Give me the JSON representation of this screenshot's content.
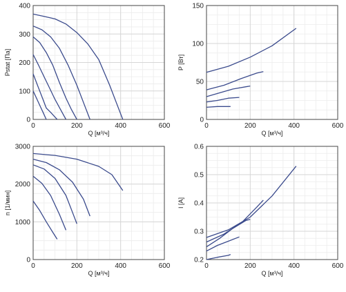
{
  "colors": {
    "curve": "#3a4a8c",
    "grid": "#d6d6d6",
    "axis": "#444444"
  },
  "chart_data": [
    {
      "type": "line",
      "xlabel": "Q [м³/ч]",
      "ylabel": "Pstat [Па]",
      "xlim": [
        0,
        600
      ],
      "ylim": [
        0,
        400
      ],
      "xticks": [
        0,
        200,
        400,
        600
      ],
      "yticks": [
        0,
        100,
        200,
        300,
        400
      ],
      "grid": true,
      "series": [
        {
          "x": [
            0,
            50,
            100,
            150,
            200,
            250,
            300,
            350,
            380,
            410
          ],
          "y": [
            370,
            362,
            353,
            335,
            305,
            265,
            210,
            120,
            60,
            0
          ]
        },
        {
          "x": [
            0,
            40,
            80,
            120,
            160,
            200,
            230,
            260
          ],
          "y": [
            328,
            315,
            290,
            250,
            190,
            120,
            60,
            0
          ]
        },
        {
          "x": [
            0,
            30,
            60,
            90,
            120,
            150,
            175,
            200
          ],
          "y": [
            290,
            270,
            235,
            190,
            130,
            75,
            35,
            0
          ]
        },
        {
          "x": [
            0,
            25,
            50,
            75,
            100,
            125,
            150
          ],
          "y": [
            228,
            190,
            150,
            110,
            70,
            35,
            0
          ]
        },
        {
          "x": [
            0,
            20,
            40,
            60,
            80,
            100,
            110
          ],
          "y": [
            160,
            120,
            80,
            40,
            25,
            8,
            0
          ]
        },
        {
          "x": [
            0,
            15,
            30,
            45,
            60
          ],
          "y": [
            100,
            75,
            50,
            25,
            0
          ]
        }
      ]
    },
    {
      "type": "line",
      "xlabel": "Q [м³/ч]",
      "ylabel": "P [Вт]",
      "xlim": [
        0,
        600
      ],
      "ylim": [
        0,
        150
      ],
      "xticks": [
        0,
        200,
        400,
        600
      ],
      "yticks": [
        0,
        50,
        100,
        150
      ],
      "grid": true,
      "series": [
        {
          "x": [
            0,
            100,
            200,
            300,
            410
          ],
          "y": [
            62,
            70,
            82,
            97,
            120
          ]
        },
        {
          "x": [
            0,
            80,
            160,
            230,
            260
          ],
          "y": [
            39,
            45,
            54,
            61,
            63
          ]
        },
        {
          "x": [
            0,
            60,
            120,
            180,
            200
          ],
          "y": [
            30,
            35,
            40,
            43,
            44
          ]
        },
        {
          "x": [
            0,
            50,
            100,
            150
          ],
          "y": [
            23,
            25,
            28,
            29
          ]
        },
        {
          "x": [
            0,
            50,
            110
          ],
          "y": [
            16,
            17,
            17
          ]
        }
      ]
    },
    {
      "type": "line",
      "xlabel": "Q [м³/ч]",
      "ylabel": "n [1/мин]",
      "xlim": [
        0,
        600
      ],
      "ylim": [
        0,
        3000
      ],
      "xticks": [
        0,
        200,
        400,
        600
      ],
      "yticks": [
        0,
        1000,
        2000,
        3000
      ],
      "grid": true,
      "series": [
        {
          "x": [
            0,
            100,
            200,
            300,
            360,
            410
          ],
          "y": [
            2810,
            2760,
            2660,
            2470,
            2250,
            1830
          ]
        },
        {
          "x": [
            0,
            60,
            120,
            180,
            230,
            260
          ],
          "y": [
            2660,
            2570,
            2380,
            2050,
            1600,
            1150
          ]
        },
        {
          "x": [
            0,
            50,
            100,
            150,
            180,
            200
          ],
          "y": [
            2510,
            2400,
            2150,
            1700,
            1250,
            950
          ]
        },
        {
          "x": [
            0,
            40,
            80,
            120,
            150
          ],
          "y": [
            2210,
            2020,
            1700,
            1200,
            780
          ]
        },
        {
          "x": [
            0,
            30,
            60,
            90,
            110
          ],
          "y": [
            1550,
            1300,
            1000,
            720,
            540
          ]
        }
      ]
    },
    {
      "type": "line",
      "xlabel": "Q [м³/ч]",
      "ylabel": "I [A]",
      "xlim": [
        0,
        600
      ],
      "ylim": [
        0.2,
        0.6
      ],
      "xticks": [
        0,
        200,
        400,
        600
      ],
      "yticks": [
        0.2,
        0.3,
        0.4,
        0.5,
        0.6
      ],
      "grid": true,
      "series": [
        {
          "x": [
            0,
            100,
            200,
            300,
            410
          ],
          "y": [
            0.278,
            0.305,
            0.35,
            0.425,
            0.53
          ]
        },
        {
          "x": [
            0,
            80,
            160,
            230,
            260
          ],
          "y": [
            0.262,
            0.29,
            0.33,
            0.385,
            0.41
          ]
        },
        {
          "x": [
            0,
            60,
            120,
            180,
            200
          ],
          "y": [
            0.245,
            0.275,
            0.31,
            0.338,
            0.342
          ]
        },
        {
          "x": [
            0,
            50,
            100,
            150
          ],
          "y": [
            0.23,
            0.25,
            0.265,
            0.28
          ]
        },
        {
          "x": [
            0,
            50,
            100,
            110
          ],
          "y": [
            0.2,
            0.208,
            0.215,
            0.218
          ]
        }
      ]
    }
  ]
}
